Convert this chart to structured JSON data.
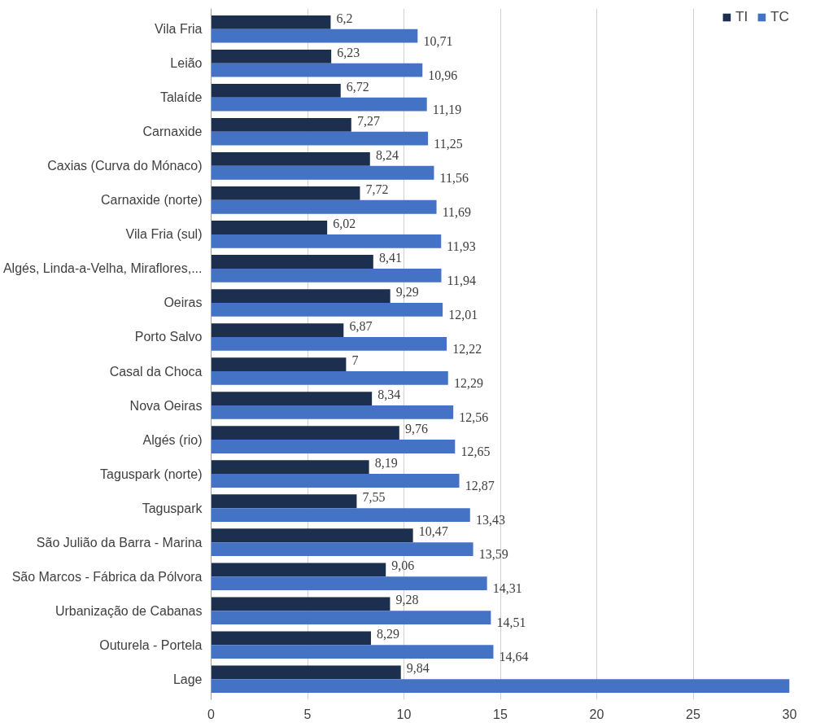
{
  "chart_data": {
    "type": "bar",
    "orientation": "horizontal",
    "categories": [
      "Vila Fria",
      "Leião",
      "Talaíde",
      "Carnaxide",
      "Caxias (Curva do Mónaco)",
      "Carnaxide (norte)",
      "Vila Fria (sul)",
      "Algés, Linda-a-Velha, Miraflores,...",
      "Oeiras",
      "Porto Salvo",
      "Casal da Choca",
      "Nova Oeiras",
      "Algés (rio)",
      "Taguspark (norte)",
      "Taguspark",
      "São Julião da Barra - Marina",
      "São Marcos - Fábrica da Pólvora",
      "Urbanização de Cabanas",
      "Outurela - Portela",
      "Lage"
    ],
    "series": [
      {
        "name": "TI",
        "color": "#1c2f4f",
        "values": [
          6.2,
          6.23,
          6.72,
          7.27,
          8.24,
          7.72,
          6.02,
          8.41,
          9.29,
          6.87,
          7,
          8.34,
          9.76,
          8.19,
          7.55,
          10.47,
          9.06,
          9.28,
          8.29,
          9.84
        ],
        "value_labels": [
          "6,2",
          "6,23",
          "6,72",
          "7,27",
          "8,24",
          "7,72",
          "6,02",
          "8,41",
          "9,29",
          "6,87",
          "7",
          "8,34",
          "9,76",
          "8,19",
          "7,55",
          "10,47",
          "9,06",
          "9,28",
          "8,29",
          "9,84"
        ]
      },
      {
        "name": "TC",
        "color": "#4472c4",
        "values": [
          10.71,
          10.96,
          11.19,
          11.25,
          11.56,
          11.69,
          11.93,
          11.94,
          12.01,
          12.22,
          12.29,
          12.56,
          12.65,
          12.87,
          13.43,
          13.59,
          14.31,
          14.51,
          14.64,
          30
        ],
        "value_labels": [
          "10,71",
          "10,96",
          "11,19",
          "11,25",
          "11,56",
          "11,69",
          "11,93",
          "11,94",
          "12,01",
          "12,22",
          "12,29",
          "12,56",
          "12,65",
          "12,87",
          "13,43",
          "13,59",
          "14,31",
          "14,51",
          "14,64",
          null
        ]
      }
    ],
    "xlim": [
      0,
      30
    ],
    "xticks": [
      0,
      5,
      10,
      15,
      20,
      25,
      30
    ],
    "grid": "x",
    "legend": "top right"
  }
}
